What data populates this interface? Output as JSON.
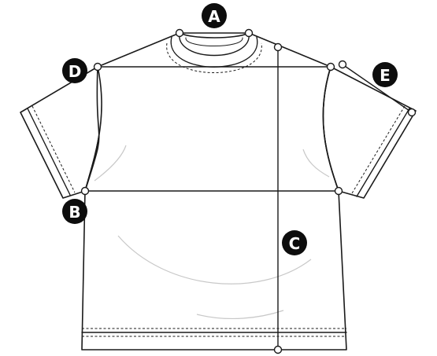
{
  "labels": {
    "a": "A",
    "b": "B",
    "c": "C",
    "d": "D",
    "e": "E"
  },
  "colors": {
    "stroke": "#1a1a1a",
    "badge_fill": "#0d0d0d",
    "badge_text": "#ffffff",
    "shading": "#c8c8c8"
  }
}
